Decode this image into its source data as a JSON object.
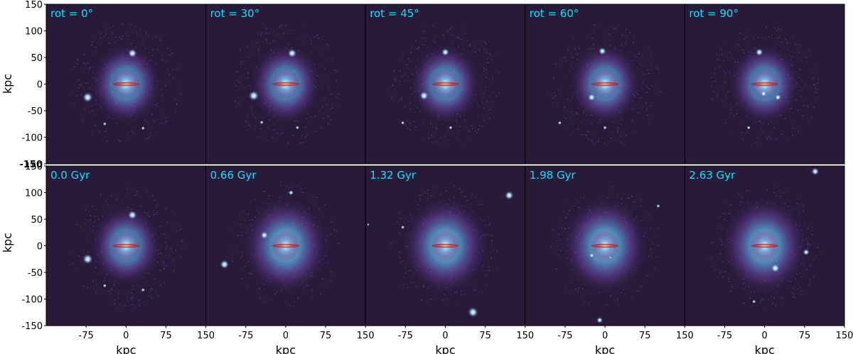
{
  "figure": {
    "row_labels": [
      "rot = 0°",
      "rot = 30°",
      "rot = 45°",
      "rot = 60°",
      "rot = 90°"
    ],
    "time_labels": [
      "0.0 Gyr",
      "0.66 Gyr",
      "1.32 Gyr",
      "1.98 Gyr",
      "2.63 Gyr"
    ],
    "xlabel": "kpc",
    "ylabel": "kpc",
    "x_ticks": [
      "-75",
      "0",
      "75",
      "150"
    ],
    "y_ticks_top": [
      "150",
      "100",
      "50",
      "0",
      "-50",
      "-100",
      "-150"
    ],
    "y_ticks_bottom": [
      "150",
      "100",
      "50",
      "0",
      "-50",
      "-100",
      "-150"
    ],
    "axis_range_kpc": [
      -150,
      150
    ],
    "colors": {
      "background": "#2a1a3a",
      "label_text": "#00e5ff",
      "halo_outer": "#6a3fa0",
      "halo_mid": "#4f8fd6",
      "halo_inner": "#a9e3f2",
      "core": "#d8342a"
    }
  }
}
